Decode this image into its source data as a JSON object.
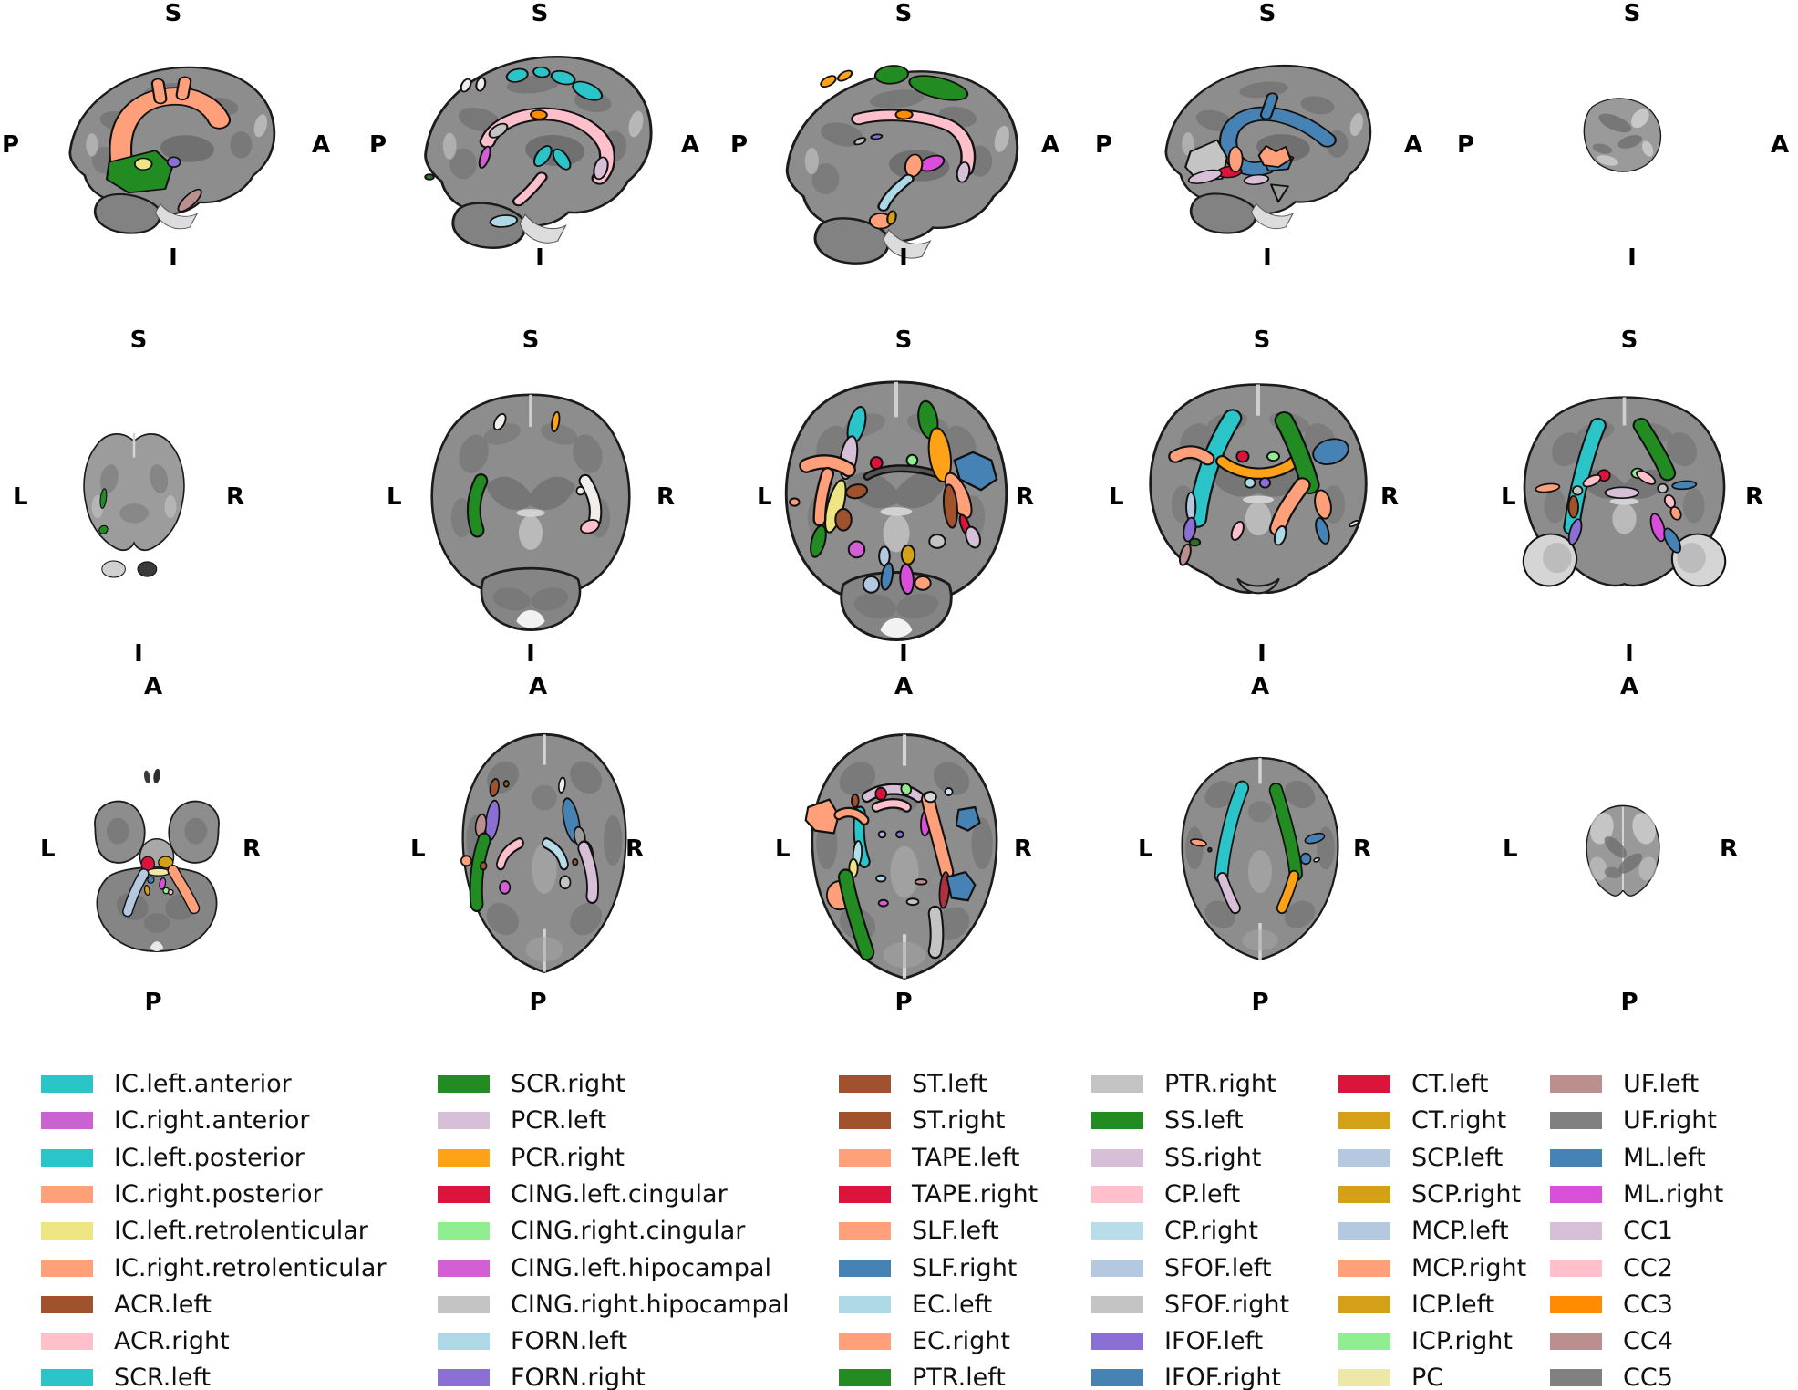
{
  "figure": {
    "description": "White matter tract segmentation atlas overlaid on brain MRI slices",
    "background": "#ffffff",
    "rows": [
      {
        "view": "sagittal",
        "orientation": {
          "top": "S",
          "bottom": "I",
          "left": "P",
          "right": "A"
        }
      },
      {
        "view": "coronal",
        "orientation": {
          "top": "S",
          "bottom": "I",
          "left": "L",
          "right": "R"
        }
      },
      {
        "view": "axial",
        "orientation": {
          "top": "A",
          "bottom": "P",
          "left": "L",
          "right": "R"
        }
      }
    ],
    "panels_per_row": 5
  },
  "legend": {
    "columns": [
      {
        "entries": [
          {
            "label": "IC.left.anterior",
            "color": "#2BC4C9"
          },
          {
            "label": "IC.right.anterior",
            "color": "#C963D2"
          },
          {
            "label": "IC.left.posterior",
            "color": "#2BC4C9"
          },
          {
            "label": "IC.right.posterior",
            "color": "#FFA07A"
          },
          {
            "label": "IC.left.retrolenticular",
            "color": "#EDE584"
          },
          {
            "label": "IC.right.retrolenticular",
            "color": "#FFA07A"
          },
          {
            "label": "ACR.left",
            "color": "#A0522D"
          },
          {
            "label": "ACR.right",
            "color": "#FFC0CB"
          },
          {
            "label": "SCR.left",
            "color": "#2BC4C9"
          }
        ]
      },
      {
        "entries": [
          {
            "label": "SCR.right",
            "color": "#228B22"
          },
          {
            "label": "PCR.left",
            "color": "#D8BFD8"
          },
          {
            "label": "PCR.right",
            "color": "#FFA217"
          },
          {
            "label": "CING.left.cingular",
            "color": "#DC143C"
          },
          {
            "label": "CING.right.cingular",
            "color": "#90EE90"
          },
          {
            "label": "CING.left.hipocampal",
            "color": "#D45FD4"
          },
          {
            "label": "CING.right.hipocampal",
            "color": "#C4C4C4"
          },
          {
            "label": "FORN.left",
            "color": "#ADD8E6"
          },
          {
            "label": "FORN.right",
            "color": "#8A6FD4"
          }
        ]
      },
      {
        "entries": [
          {
            "label": "ST.left",
            "color": "#A0522D"
          },
          {
            "label": "ST.right",
            "color": "#A0522D"
          },
          {
            "label": "TAPE.left",
            "color": "#FFA07A"
          },
          {
            "label": "TAPE.right",
            "color": "#DC143C"
          },
          {
            "label": "SLF.left",
            "color": "#FFA07A"
          },
          {
            "label": "SLF.right",
            "color": "#4682B4"
          },
          {
            "label": "EC.left",
            "color": "#ADD8E6"
          },
          {
            "label": "EC.right",
            "color": "#FFA07A"
          },
          {
            "label": "PTR.left",
            "color": "#228B22"
          }
        ]
      },
      {
        "entries": [
          {
            "label": "PTR.right",
            "color": "#C4C4C4"
          },
          {
            "label": "SS.left",
            "color": "#228B22"
          },
          {
            "label": "SS.right",
            "color": "#D8BFD8"
          },
          {
            "label": "CP.left",
            "color": "#FFC0CB"
          },
          {
            "label": "CP.right",
            "color": "#B8DCE8"
          },
          {
            "label": "SFOF.left",
            "color": "#B4C8E0"
          },
          {
            "label": "SFOF.right",
            "color": "#C4C4C4"
          },
          {
            "label": "IFOF.left",
            "color": "#8A6FD4"
          },
          {
            "label": "IFOF.right",
            "color": "#4682B4"
          }
        ]
      },
      {
        "entries": [
          {
            "label": "CT.left",
            "color": "#DC143C"
          },
          {
            "label": "CT.right",
            "color": "#D4A017"
          },
          {
            "label": "SCP.left",
            "color": "#B4C8E0"
          },
          {
            "label": "SCP.right",
            "color": "#D4A017"
          },
          {
            "label": "MCP.left",
            "color": "#B4C8E0"
          },
          {
            "label": "MCP.right",
            "color": "#FFA07A"
          },
          {
            "label": "ICP.left",
            "color": "#D4A017"
          },
          {
            "label": "ICP.right",
            "color": "#90EE90"
          },
          {
            "label": "PC",
            "color": "#EEE8A8"
          }
        ]
      },
      {
        "entries": [
          {
            "label": "UF.left",
            "color": "#BC8F8F"
          },
          {
            "label": "UF.right",
            "color": "#808080"
          },
          {
            "label": "ML.left",
            "color": "#4682B4"
          },
          {
            "label": "ML.right",
            "color": "#D94FD9"
          },
          {
            "label": "CC1",
            "color": "#D8BFD8"
          },
          {
            "label": "CC2",
            "color": "#FFC0CB"
          },
          {
            "label": "CC3",
            "color": "#FF8C00"
          },
          {
            "label": "CC4",
            "color": "#BC8F8F"
          },
          {
            "label": "CC5",
            "color": "#808080"
          }
        ]
      }
    ]
  }
}
